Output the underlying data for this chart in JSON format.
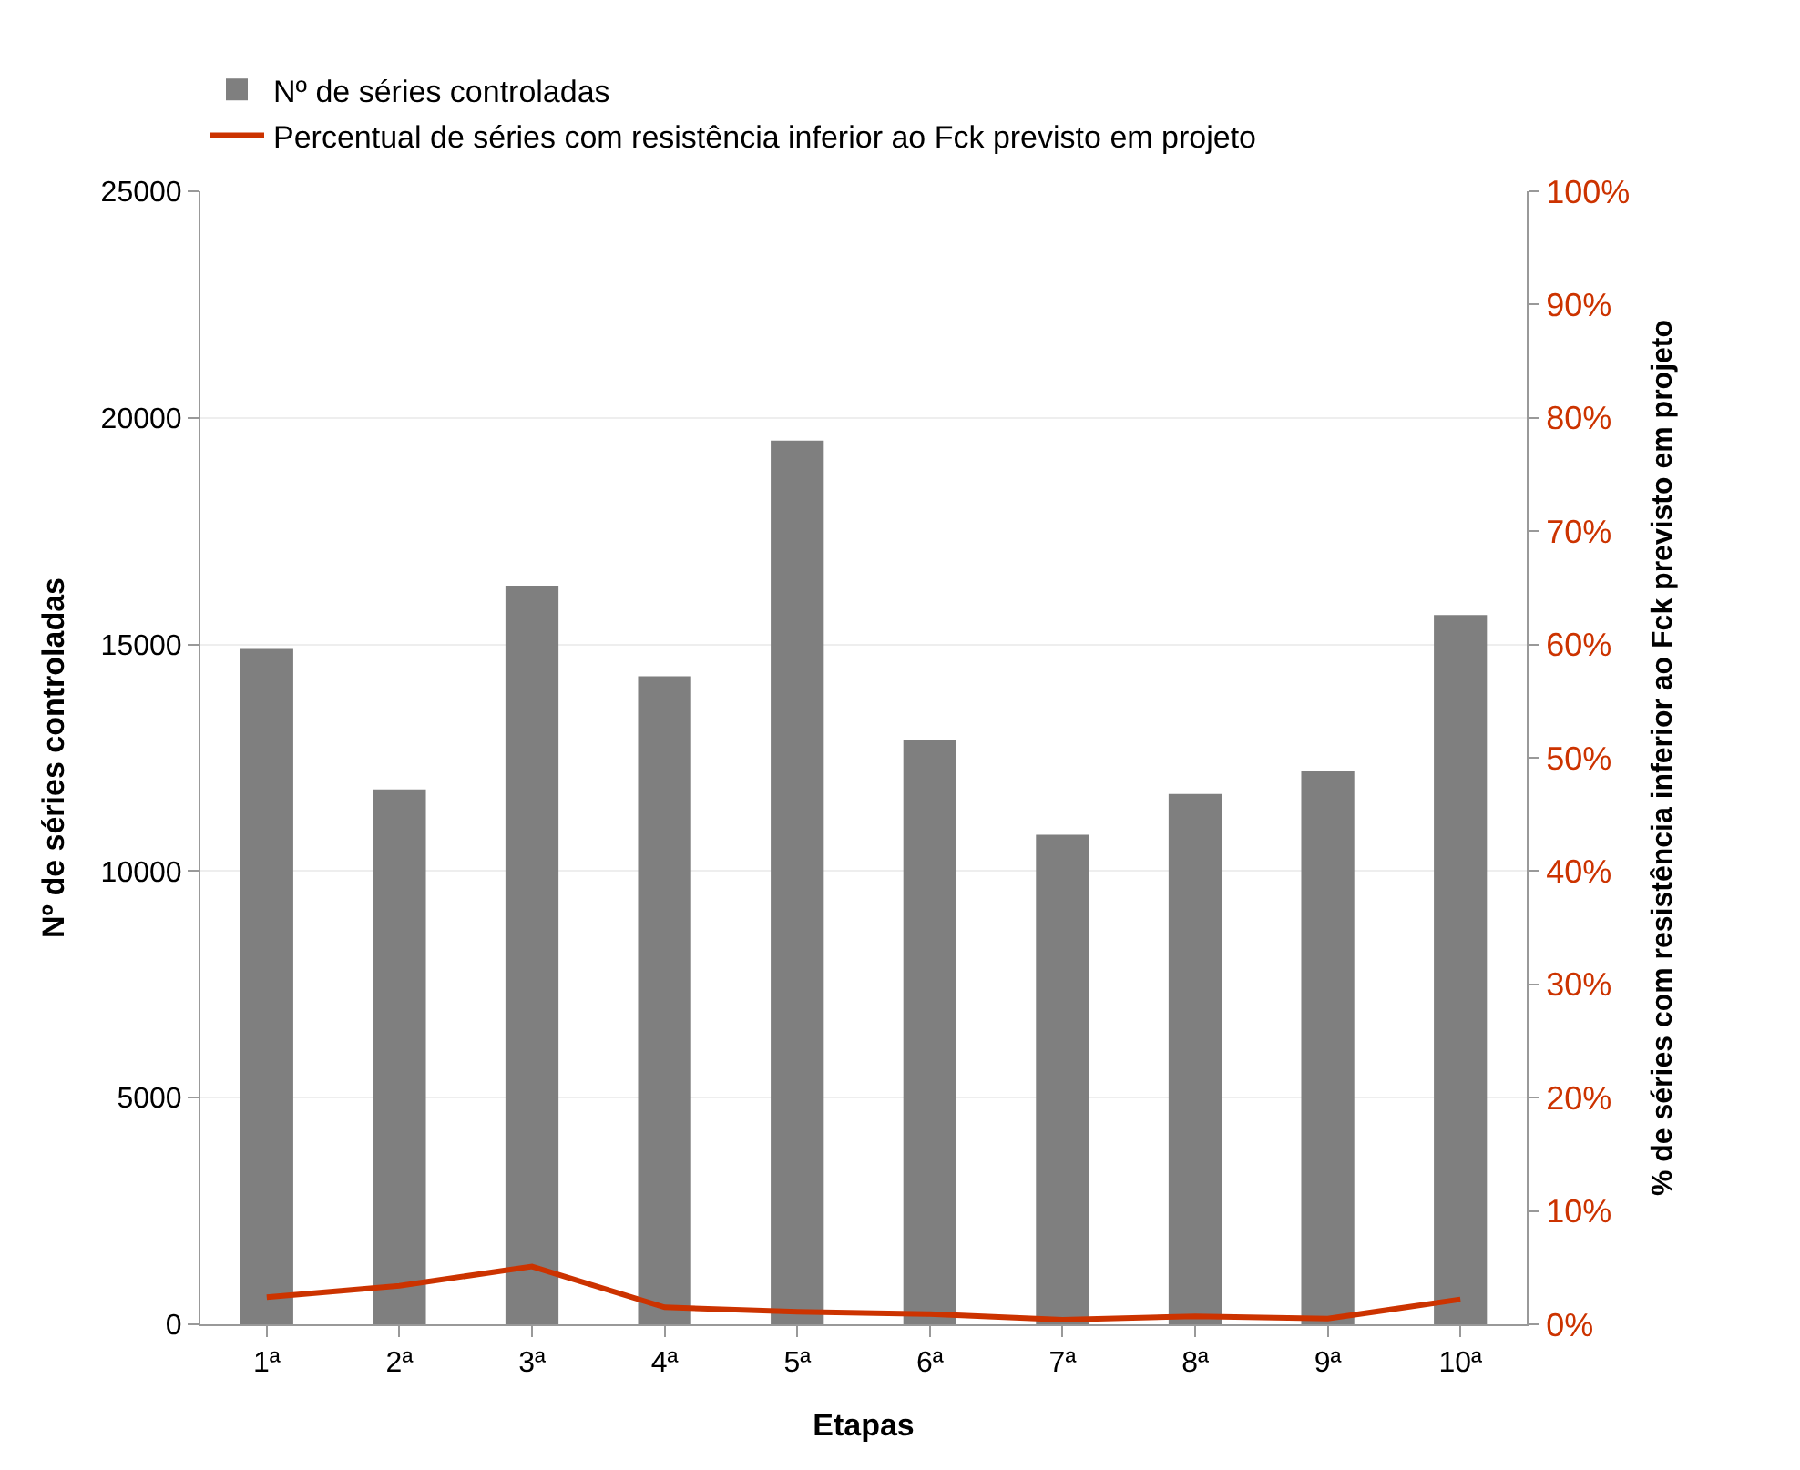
{
  "chart_data": {
    "type": "bar",
    "xlabel": "Etapas",
    "ylabel": "Nº de séries controladas",
    "y2label": "% de séries com resistência inferior ao Fck previsto em projeto",
    "categories": [
      "1ª",
      "2ª",
      "3ª",
      "4ª",
      "5ª",
      "6ª",
      "7ª",
      "8ª",
      "9ª",
      "10ª"
    ],
    "series": [
      {
        "name": "Nº de séries controladas",
        "color": "#7f7f7f",
        "values": [
          14900,
          11800,
          16300,
          14300,
          19500,
          12900,
          10800,
          11700,
          12200,
          15650
        ]
      },
      {
        "name": "Percentual de séries com resistência inferior ao Fck previsto em projeto",
        "type": "line",
        "axis": "y2",
        "color": "#cc3300",
        "values": [
          2.4,
          3.4,
          5.1,
          1.5,
          1.1,
          0.9,
          0.4,
          0.7,
          0.5,
          2.2
        ]
      }
    ],
    "ylim": [
      0,
      25000
    ],
    "yticks": [
      0,
      5000,
      10000,
      15000,
      20000,
      25000
    ],
    "y2lim": [
      0,
      100
    ],
    "y2ticks": [
      {
        "value": 0,
        "label": "0%"
      },
      {
        "value": 10,
        "label": "10%"
      },
      {
        "value": 20,
        "label": "20%"
      },
      {
        "value": 30,
        "label": "30%"
      },
      {
        "value": 40,
        "label": "40%"
      },
      {
        "value": 50,
        "label": "50%"
      },
      {
        "value": 60,
        "label": "60%"
      },
      {
        "value": 70,
        "label": "70%"
      },
      {
        "value": 80,
        "label": "80%"
      },
      {
        "value": 90,
        "label": "90%"
      },
      {
        "value": 100,
        "label": "100%"
      }
    ],
    "grid": "y",
    "legend": "top left",
    "marker": "none",
    "line_style": "solid"
  }
}
